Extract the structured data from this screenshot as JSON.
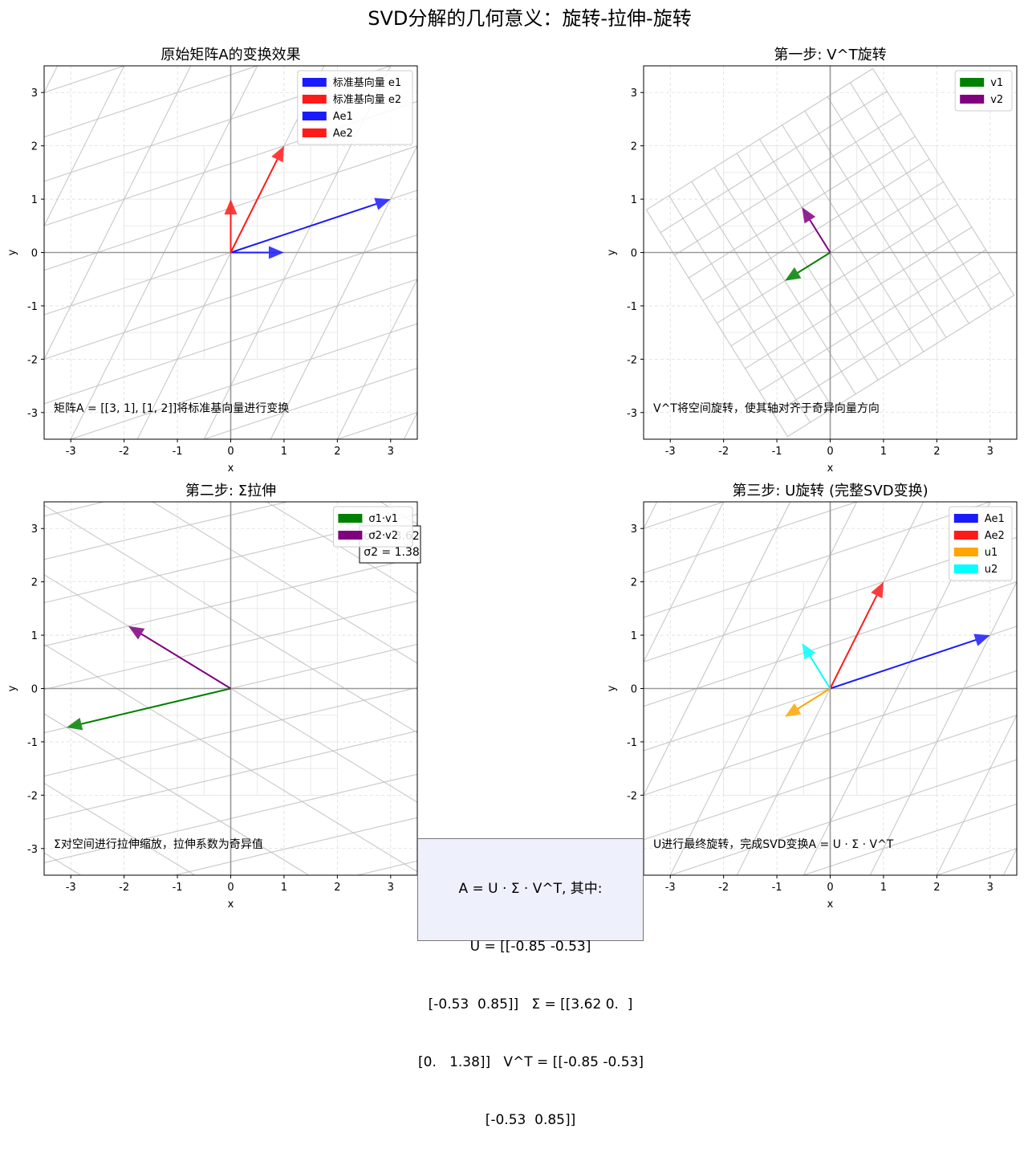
{
  "figure": {
    "title": "SVD分解的几何意义：旋转-拉伸-旋转",
    "colors": {
      "e1": "#1a1aff",
      "e2": "#ff1a1a",
      "v1": "#008000",
      "v2": "#800080",
      "u1": "#ffa500",
      "u2": "#00ffff",
      "grid": "#999999"
    },
    "formula_lines": [
      "A = U · Σ · V^T, 其中:",
      "U = [[-0.85 -0.53]",
      "[-0.53  0.85]]   Σ = [[3.62 0.  ]",
      "[0.   1.38]]   V^T = [[-0.85 -0.53]",
      "[-0.53  0.85]]"
    ]
  },
  "chart_data": [
    {
      "type": "quiver",
      "title": "原始矩阵A的变换效果",
      "xlabel": "x",
      "ylabel": "y",
      "xlim": [
        -3.5,
        3.5
      ],
      "ylim": [
        -3.5,
        3.5
      ],
      "xticks": [
        -3,
        -2,
        -1,
        0,
        1,
        2,
        3
      ],
      "yticks": [
        -3,
        -2,
        -1,
        0,
        1,
        2,
        3
      ],
      "grid": true,
      "legend_position": "top-right",
      "grid_transform": [
        [
          3,
          1
        ],
        [
          1,
          2
        ]
      ],
      "annotation": "矩阵A = [[3, 1], [1, 2]]将标准基向量进行变换",
      "vectors": [
        {
          "name": "标准基向量 e1",
          "x": 1,
          "y": 0,
          "color": "#1a1aff",
          "legend": true
        },
        {
          "name": "标准基向量 e2",
          "x": 0,
          "y": 1,
          "color": "#ff1a1a",
          "legend": true
        },
        {
          "name": "Ae1",
          "x": 3,
          "y": 1,
          "color": "#1a1aff",
          "legend": true
        },
        {
          "name": "Ae2",
          "x": 1,
          "y": 2,
          "color": "#ff1a1a",
          "legend": true
        }
      ]
    },
    {
      "type": "quiver",
      "title": "第一步: V^T旋转",
      "xlabel": "x",
      "ylabel": "y",
      "xlim": [
        -3.5,
        3.5
      ],
      "ylim": [
        -3.5,
        3.5
      ],
      "xticks": [
        -3,
        -2,
        -1,
        0,
        1,
        2,
        3
      ],
      "yticks": [
        -3,
        -2,
        -1,
        0,
        1,
        2,
        3
      ],
      "grid": true,
      "legend_position": "top-right",
      "grid_transform": [
        [
          -0.85,
          -0.53
        ],
        [
          -0.53,
          0.85
        ]
      ],
      "annotation": "V^T将空间旋转，使其轴对齐于奇异向量方向",
      "vectors": [
        {
          "name": "v1",
          "x": -0.85,
          "y": -0.53,
          "color": "#008000",
          "legend": true
        },
        {
          "name": "v2",
          "x": -0.53,
          "y": 0.85,
          "color": "#800080",
          "legend": true
        }
      ]
    },
    {
      "type": "quiver",
      "title": "第二步: Σ拉伸",
      "xlabel": "x",
      "ylabel": "y",
      "xlim": [
        -3.5,
        3.5
      ],
      "ylim": [
        -3.5,
        3.5
      ],
      "xticks": [
        -3,
        -2,
        -1,
        0,
        1,
        2,
        3
      ],
      "yticks": [
        -3,
        -2,
        -1,
        0,
        1,
        2,
        3
      ],
      "grid": true,
      "legend_position": "top-right",
      "grid_transform": [
        [
          -3.08,
          -0.73
        ],
        [
          -1.92,
          1.17
        ]
      ],
      "annotation": "Σ对空间进行拉伸缩放，拉伸系数为奇异值",
      "sigma_label_lines": [
        "σ1 = 3.62",
        "σ2 = 1.38"
      ],
      "vectors": [
        {
          "name": "σ1·v1",
          "x": -3.08,
          "y": -0.73,
          "color": "#008000",
          "legend": true
        },
        {
          "name": "σ2·v2",
          "x": -1.92,
          "y": 1.17,
          "color": "#800080",
          "legend": true
        }
      ]
    },
    {
      "type": "quiver",
      "title": "第三步: U旋转 (完整SVD变换)",
      "xlabel": "x",
      "ylabel": "y",
      "xlim": [
        -3.5,
        3.5
      ],
      "ylim": [
        -3.5,
        3.5
      ],
      "xticks": [
        -3,
        -2,
        -1,
        0,
        1,
        2,
        3
      ],
      "yticks": [
        -3,
        -2,
        -1,
        0,
        1,
        2,
        3
      ],
      "grid": true,
      "legend_position": "top-right",
      "grid_transform": [
        [
          3,
          1
        ],
        [
          1,
          2
        ]
      ],
      "annotation": "U进行最终旋转，完成SVD变换A = U · Σ · V^T",
      "vectors": [
        {
          "name": "Ae1",
          "x": 3,
          "y": 1,
          "color": "#1a1aff",
          "legend": true
        },
        {
          "name": "Ae2",
          "x": 1,
          "y": 2,
          "color": "#ff1a1a",
          "legend": true
        },
        {
          "name": "u1",
          "x": -0.85,
          "y": -0.53,
          "color": "#ffa500",
          "legend": true
        },
        {
          "name": "u2",
          "x": -0.53,
          "y": 0.85,
          "color": "#00ffff",
          "legend": true
        }
      ]
    }
  ]
}
